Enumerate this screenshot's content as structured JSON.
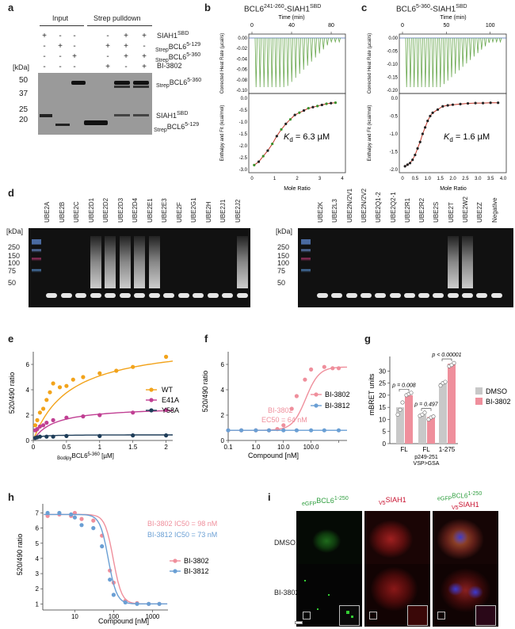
{
  "panels": {
    "a": {
      "letter": "a",
      "headers": {
        "input": "Input",
        "pulldown": "Strep pulldown"
      },
      "row_labels": [
        "SIAH1SBD",
        "StrepBCL6 5-129",
        "StrepBCL6 5-360",
        "BI-3802"
      ],
      "row_label_parts": [
        {
          "main": "SIAH1",
          "sup": "SBD",
          "pre": ""
        },
        {
          "main": "BCL6",
          "sup": "5-129",
          "pre": "Strep"
        },
        {
          "main": "BCL6",
          "sup": "5-360",
          "pre": "Strep"
        },
        {
          "main": "BI-3802",
          "sup": "",
          "pre": ""
        }
      ],
      "lane_signs": [
        [
          "+",
          "-",
          "-",
          "-",
          "+",
          "+"
        ],
        [
          "-",
          "+",
          "-",
          "+",
          "+",
          "-"
        ],
        [
          "-",
          "-",
          "+",
          "-",
          "+",
          "+"
        ],
        [
          "-",
          "-",
          "-",
          "+",
          "-",
          "+"
        ]
      ],
      "kda_label": "[kDa]",
      "markers": [
        "50",
        "37",
        "25",
        "20"
      ],
      "band_labels": [
        {
          "pre": "Strep",
          "main": "BCL6",
          "sup": "5-360"
        },
        {
          "pre": "",
          "main": "SIAH1",
          "sup": "SBD"
        },
        {
          "pre": "Strep",
          "main": "BCL6",
          "sup": "5-129"
        }
      ]
    },
    "b": {
      "letter": "b",
      "title_main": "BCL6",
      "title_sup": "241-260",
      "title_mid": "-SIAH1",
      "title_sup2": "SBD",
      "time_label": "Time (min)",
      "time_ticks": [
        "0",
        "40",
        "80"
      ],
      "top_ylabel": "Corrected Heat Rate (µcal/s)",
      "top_yticks": [
        "0.00",
        "-0.02",
        "-0.04",
        "-0.06",
        "-0.08",
        "-0.10"
      ],
      "bottom_ylabel": "Enthalpy and Fit (kcal/mol)",
      "bottom_yticks": [
        "0.0",
        "-0.5",
        "-1.0",
        "-1.5",
        "-2.0",
        "-2.5",
        "-3.0"
      ],
      "xlabel": "Mole Ratio",
      "xticks": [
        "0",
        "1",
        "2",
        "3",
        "4"
      ],
      "kd": "Kd = 6.3 µM",
      "kd_letter": "K",
      "kd_sub": "d",
      "kd_value": " = 6.3 µM"
    },
    "c": {
      "letter": "c",
      "title_main": "BCL6",
      "title_sup": "5-360",
      "title_mid": "-SIAH1",
      "title_sup2": "SBD",
      "time_label": "Time (min)",
      "time_ticks": [
        "0",
        "50",
        "100"
      ],
      "top_ylabel": "Corrected Heat Rate (µcal/s)",
      "top_yticks": [
        "0.00",
        "-0.05",
        "-0.10",
        "-0.15",
        "-0.20"
      ],
      "bottom_ylabel": "Enthalpy and Fit (kcal/mol)",
      "bottom_yticks": [
        "0.0",
        "-0.5",
        "-1.0",
        "-1.5",
        "-2.0"
      ],
      "xlabel": "Mole Ratio",
      "xticks": [
        "0",
        "0.5",
        "1.0",
        "1.5",
        "2.0",
        "2.5",
        "3.0",
        "3.5",
        "4.0"
      ],
      "kd_letter": "K",
      "kd_sub": "d",
      "kd_value": " = 1.6 µM"
    },
    "d": {
      "letter": "d",
      "kda_label": "[kDa]",
      "left_lanes": [
        "UBE2A",
        "UBE2B",
        "UBE2C",
        "UBE2D1",
        "UBE2D2",
        "UBE2D3",
        "UBE2D4",
        "UBE2E1",
        "UBE2E3",
        "UBE2F",
        "UBE2G1",
        "UBE2H",
        "UBE2J1",
        "UBE2J2"
      ],
      "right_lanes": [
        "UBE2K",
        "UBE2L3",
        "UBE2N/2V1",
        "UBE2N/2V2",
        "UBE2Q1-2",
        "UBE2Q2-1",
        "UBE2R1",
        "UBE2R2",
        "UBE2S",
        "UBE2T",
        "UBE2W2",
        "UBE2Z",
        "Negative"
      ],
      "markers": [
        "250",
        "150",
        "100",
        "75",
        "50"
      ]
    },
    "e": {
      "letter": "e",
      "ylabel": "520/490 ratio",
      "xlabel_pre": "Bodipy",
      "xlabel_main": "BCL6",
      "xlabel_sup": "5-360",
      "xlabel_unit": " [µM]",
      "legend": [
        "WT",
        "E41A",
        "Y58A"
      ]
    },
    "f": {
      "letter": "f",
      "ylabel": "520/490 ratio",
      "xlabel": "Compound [nM]",
      "legend": [
        "BI-3802",
        "BI-3812"
      ],
      "annot1": "BI-3802",
      "annot2": "EC50 = 64 nM"
    },
    "g": {
      "letter": "g",
      "ylabel": "mBRET units",
      "legend": [
        "DMSO",
        "BI-3802"
      ],
      "groups": [
        "FL",
        "FL",
        "1-275"
      ],
      "group_sub": [
        "",
        "p249-251",
        "VSP>GSA"
      ],
      "pvals": [
        "p = 0.008",
        "p = 0.497",
        "p < 0.00001"
      ]
    },
    "h": {
      "letter": "h",
      "ylabel": "520/490 ratio",
      "xlabel": "Compound [nM]",
      "legend": [
        "BI-3802",
        "BI-3812"
      ],
      "annot1": "BI-3802 IC50 = 98 nM",
      "annot2": "BI-3812 IC50 = 73 nM"
    },
    "i": {
      "letter": "i",
      "col1_pre": "eGFP",
      "col1_main": "BCL6",
      "col1_sup": "1-250",
      "col2_pre": "V5",
      "col2_main": "SIAH1",
      "col3_pre": "eGFP",
      "col3_main": "BCL6",
      "col3_sup": "1-250",
      "col3_pre2": "V5",
      "col3_main2": "SIAH1",
      "rows": [
        "DMSO",
        "BI-3802"
      ]
    }
  },
  "colors": {
    "wt": "#f2a31b",
    "e41a": "#c03f93",
    "y58a": "#1e3d59",
    "bi3802": "#ef8f9c",
    "bi3812": "#6a9fd4",
    "dmso": "#c8c8c8",
    "itc_green": "#6aa84f",
    "itc_blue": "#4a6fb3",
    "fit_red": "#c0392b",
    "green_label": "#2e9e3e",
    "red_label": "#c8102e"
  },
  "chart_data": [
    {
      "type": "scatter",
      "id": "e",
      "series": [
        {
          "name": "WT",
          "x": [
            0.03,
            0.06,
            0.1,
            0.15,
            0.2,
            0.25,
            0.3,
            0.4,
            0.5,
            0.6,
            0.75,
            1.0,
            1.25,
            1.5,
            2.0
          ],
          "y": [
            1.2,
            1.6,
            2.2,
            2.5,
            3.2,
            3.8,
            4.5,
            4.2,
            4.3,
            4.8,
            5.0,
            5.3,
            5.5,
            5.8,
            6.6
          ]
        },
        {
          "name": "E41A",
          "x": [
            0.03,
            0.06,
            0.1,
            0.15,
            0.2,
            0.3,
            0.5,
            0.75,
            1.0,
            1.5,
            2.0
          ],
          "y": [
            0.8,
            0.9,
            1.1,
            1.2,
            1.4,
            1.6,
            1.8,
            1.9,
            2.0,
            2.2,
            2.4
          ]
        },
        {
          "name": "Y58A",
          "x": [
            0.03,
            0.06,
            0.1,
            0.2,
            0.3,
            0.5,
            1.0,
            1.5,
            2.0
          ],
          "y": [
            0.2,
            0.25,
            0.3,
            0.3,
            0.3,
            0.35,
            0.35,
            0.4,
            0.4
          ]
        }
      ],
      "xlim": [
        0,
        2.1
      ],
      "ylim": [
        0,
        7
      ],
      "xticks": [
        0,
        0.5,
        1.0,
        1.5,
        2.0
      ],
      "yticks": [
        0,
        2,
        4,
        6
      ]
    },
    {
      "type": "scatter",
      "id": "f",
      "series": [
        {
          "name": "BI-3802",
          "x": [
            0.1,
            0.3,
            1,
            3,
            6,
            10,
            20,
            30,
            60,
            100,
            300,
            600,
            1000
          ],
          "y": [
            0.8,
            0.8,
            0.8,
            0.8,
            0.9,
            1.2,
            2.5,
            3.5,
            4.8,
            5.6,
            5.8,
            5.7,
            5.7
          ]
        },
        {
          "name": "BI-3812",
          "x": [
            0.1,
            0.3,
            1,
            3,
            10,
            30,
            100,
            300,
            1000
          ],
          "y": [
            0.8,
            0.8,
            0.8,
            0.8,
            0.8,
            0.8,
            0.8,
            0.8,
            0.8
          ]
        }
      ],
      "xscale": "log",
      "xlim": [
        0.1,
        2000
      ],
      "ylim": [
        0,
        7
      ],
      "xticks": [
        0.1,
        1,
        10,
        100,
        1000
      ],
      "xticklabels": [
        "0.1",
        "1.0",
        "10.0",
        "100.0",
        ""
      ],
      "yticks": [
        0,
        2,
        4,
        6
      ]
    },
    {
      "type": "bar",
      "id": "g",
      "categories": [
        "FL",
        "FL p249-251 VSP>GSA",
        "1-275"
      ],
      "series": [
        {
          "name": "DMSO",
          "values": [
            15,
            12,
            25
          ]
        },
        {
          "name": "BI-3802",
          "values": [
            20,
            11,
            33
          ]
        }
      ],
      "ylim": [
        0,
        36
      ],
      "yticks": [
        0,
        5,
        10,
        15,
        20,
        25,
        30
      ]
    },
    {
      "type": "scatter",
      "id": "h",
      "series": [
        {
          "name": "BI-3802",
          "x": [
            2,
            4,
            8,
            10,
            15,
            30,
            50,
            80,
            100,
            200,
            400,
            800,
            1500
          ],
          "y": [
            6.8,
            6.9,
            6.8,
            7.0,
            6.6,
            6.5,
            5.5,
            3.2,
            2.4,
            1.2,
            1.05,
            1.0,
            1.0
          ]
        },
        {
          "name": "BI-3812",
          "x": [
            2,
            4,
            8,
            10,
            15,
            30,
            50,
            80,
            100,
            200,
            400,
            800,
            1500
          ],
          "y": [
            7.0,
            7.0,
            6.9,
            6.7,
            6.2,
            6.0,
            4.8,
            2.6,
            1.6,
            1.1,
            1.0,
            1.0,
            1.0
          ]
        }
      ],
      "xscale": "log",
      "xlim": [
        1.5,
        2500
      ],
      "ylim": [
        0.6,
        7.6
      ],
      "xticks": [
        10,
        100,
        1000
      ],
      "yticks": [
        1,
        2,
        3,
        4,
        5,
        6,
        7
      ]
    },
    {
      "type": "line",
      "id": "b-bottom",
      "x": [
        0.1,
        0.3,
        0.5,
        0.7,
        0.9,
        1.1,
        1.3,
        1.5,
        1.7,
        1.9,
        2.1,
        2.3,
        2.5,
        2.7,
        2.9,
        3.1,
        3.3,
        3.5,
        3.7
      ],
      "y": [
        -2.9,
        -2.75,
        -2.5,
        -2.25,
        -1.95,
        -1.6,
        -1.3,
        -1.05,
        -0.85,
        -0.65,
        -0.55,
        -0.45,
        -0.35,
        -0.3,
        -0.25,
        -0.2,
        -0.15,
        -0.12,
        -0.1
      ],
      "xlim": [
        0,
        4
      ],
      "ylim": [
        -3.1,
        0.1
      ]
    },
    {
      "type": "line",
      "id": "c-bottom",
      "x": [
        0.1,
        0.2,
        0.3,
        0.4,
        0.5,
        0.6,
        0.7,
        0.8,
        0.9,
        1.0,
        1.1,
        1.2,
        1.4,
        1.6,
        1.8,
        2.0,
        2.3,
        2.6,
        2.9,
        3.2,
        3.5,
        3.8
      ],
      "y": [
        -2.0,
        -1.95,
        -1.9,
        -1.8,
        -1.65,
        -1.45,
        -1.25,
        -1.0,
        -0.8,
        -0.6,
        -0.45,
        -0.35,
        -0.25,
        -0.15,
        -0.12,
        -0.1,
        -0.08,
        -0.06,
        -0.05,
        -0.05,
        -0.04,
        -0.04
      ],
      "xlim": [
        0,
        4
      ],
      "ylim": [
        -2.1,
        0.1
      ]
    }
  ]
}
